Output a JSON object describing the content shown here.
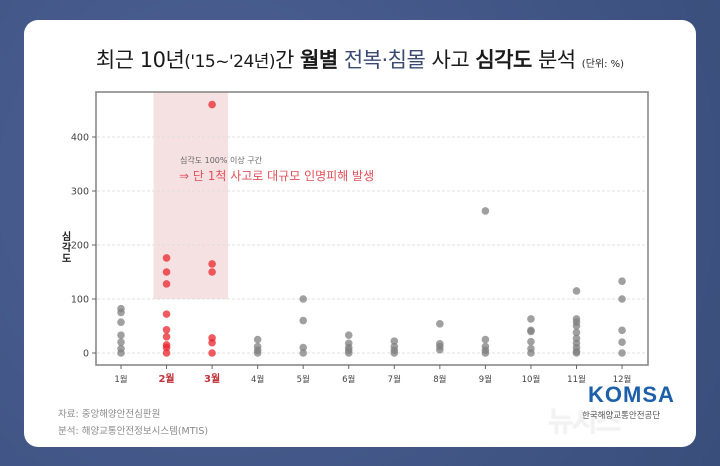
{
  "title": {
    "part1": "최근 10년",
    "part2": "('15~'24년)",
    "part3": "간 ",
    "part4_bold": "월별",
    "part5_blue": " 전복·침몰",
    "part6": " 사고 ",
    "part7_bold": "심각도",
    "part8": " 분석 ",
    "unit": "(단위: %)"
  },
  "annotation": {
    "small": "심각도 100% 이상 구간",
    "large": "⇒ 단 1척 사고로 대규모 인명피해 발생"
  },
  "source": {
    "line1": "자료: 중앙해양안전심판원",
    "line2": "분석: 해양교통안전정보시스템(MTIS)"
  },
  "logo": {
    "name": "KOMSA",
    "subtitle": "한국해양교통안전공단"
  },
  "watermark": "뉴시스",
  "colors": {
    "background": "#44598a",
    "highlight_point": "#e8262c",
    "normal_point": "#808080",
    "highlight_band": "#f5e1e2",
    "highlight_label": "#c0343a",
    "annotation": "#e0505a"
  },
  "chart_data": {
    "type": "scatter",
    "title": "최근 10년('15~'24년)간 월별 전복·침몰 사고 심각도 분석 (단위: %)",
    "xlabel": "",
    "ylabel": "심각도",
    "categories": [
      "1월",
      "2월",
      "3월",
      "4월",
      "5월",
      "6월",
      "7월",
      "8월",
      "9월",
      "10월",
      "11월",
      "12월"
    ],
    "highlight_categories": [
      "2월",
      "3월"
    ],
    "yticks": [
      0,
      100,
      200,
      300,
      400
    ],
    "ylim": [
      -22,
      480
    ],
    "grid": true,
    "highlight_band": {
      "x_from": "2월",
      "x_to": "3월",
      "y_from": 100,
      "y_to": 480
    },
    "series": [
      {
        "month": "1월",
        "values": [
          82,
          75,
          57,
          33,
          20,
          8,
          0
        ]
      },
      {
        "month": "2월",
        "values": [
          176,
          150,
          128,
          72,
          43,
          30,
          15,
          10,
          0
        ]
      },
      {
        "month": "3월",
        "values": [
          460,
          165,
          150,
          28,
          19,
          0
        ]
      },
      {
        "month": "4월",
        "values": [
          25,
          12,
          5,
          0
        ]
      },
      {
        "month": "5월",
        "values": [
          100,
          60,
          10,
          0
        ]
      },
      {
        "month": "6월",
        "values": [
          33,
          18,
          10,
          5,
          0
        ]
      },
      {
        "month": "7월",
        "values": [
          22,
          12,
          5,
          0
        ]
      },
      {
        "month": "8월",
        "values": [
          54,
          17,
          12,
          6
        ]
      },
      {
        "month": "9월",
        "values": [
          263,
          25,
          12,
          5,
          0
        ]
      },
      {
        "month": "10월",
        "values": [
          63,
          42,
          40,
          21,
          8,
          0
        ]
      },
      {
        "month": "11월",
        "values": [
          115,
          63,
          57,
          50,
          38,
          27,
          18,
          10,
          3,
          0
        ]
      },
      {
        "month": "12월",
        "values": [
          133,
          100,
          42,
          20,
          0
        ]
      }
    ]
  }
}
